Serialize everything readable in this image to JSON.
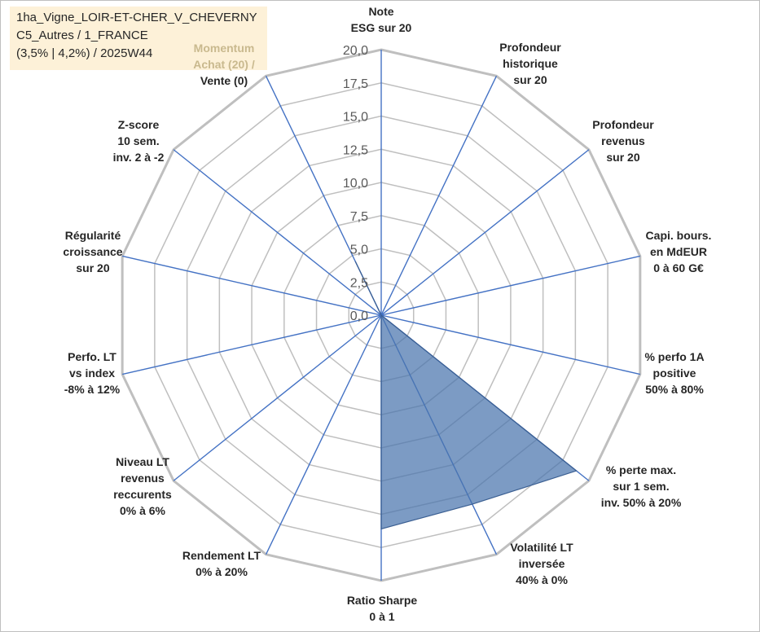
{
  "info": {
    "line1": "1ha_Vigne_LOIR-ET-CHER_V_CHEVERNY",
    "line2": "C5_Autres / 1_FRANCE",
    "line3": "(3,5% | 4,2%) / 2025W44",
    "background": "#fdf1d8"
  },
  "chart_data": {
    "type": "radar",
    "title": "",
    "r_min": 0,
    "r_max": 20,
    "ticks": [
      "0,0",
      "2,5",
      "5,0",
      "7,5",
      "10,0",
      "12,5",
      "15,0",
      "17,5",
      "20,0"
    ],
    "tick_values": [
      0,
      2.5,
      5,
      7.5,
      10,
      12.5,
      15,
      17.5,
      20
    ],
    "grid_color": "#bfbfbf",
    "spoke_color": "#4472c4",
    "fill_color": "#4a74ad",
    "axes": [
      {
        "lines": [
          "Note",
          "ESG sur 20"
        ]
      },
      {
        "lines": [
          "Profondeur",
          "historique",
          "sur 20"
        ]
      },
      {
        "lines": [
          "Profondeur",
          "revenus",
          "sur 20"
        ]
      },
      {
        "lines": [
          "Capi. bours.",
          "en MdEUR",
          "0 à 60 G€"
        ]
      },
      {
        "lines": [
          "% perfo 1A",
          "positive",
          "50% à 80%"
        ]
      },
      {
        "lines": [
          "% perte max.",
          "sur 1 sem.",
          "inv. 50% à 20%"
        ]
      },
      {
        "lines": [
          "Volatilité LT",
          "inversée",
          "40% à 0%"
        ]
      },
      {
        "lines": [
          "Ratio Sharpe",
          "0 à 1"
        ]
      },
      {
        "lines": [
          "Rendement LT",
          "0% à 20%"
        ]
      },
      {
        "lines": [
          "Niveau LT",
          "revenus",
          "reccurents",
          "0% à 6%"
        ]
      },
      {
        "lines": [
          "Perfo. LT",
          "vs index",
          "-8% à 12%"
        ]
      },
      {
        "lines": [
          "Régularité",
          "croissance",
          "sur 20"
        ]
      },
      {
        "lines": [
          "Z-score",
          "10 sem.",
          "inv. 2 à -2"
        ]
      },
      {
        "lines": [
          "Momentum",
          "Achat (20) /",
          "Vente (0)"
        ],
        "colors": [
          "#c9b98e",
          "#c9b98e",
          "#262626"
        ]
      }
    ],
    "series": [
      {
        "values": [
          0,
          0,
          0,
          0,
          0,
          18.8,
          15.8,
          16.1,
          0,
          0,
          0,
          0,
          0,
          4.5
        ]
      }
    ]
  }
}
